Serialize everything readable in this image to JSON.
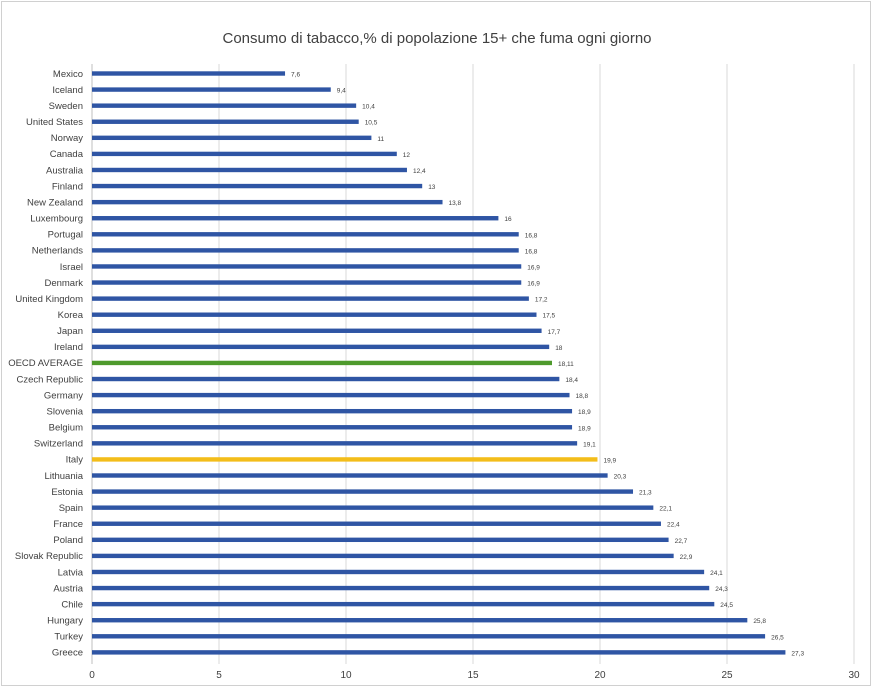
{
  "chart_data": {
    "type": "bar",
    "orientation": "horizontal",
    "title": "Consumo di tabacco,% di popolazione 15+ che fuma ogni giorno",
    "xlabel": "",
    "ylabel": "",
    "xlim": [
      0,
      30
    ],
    "xticks": [
      0,
      5,
      10,
      15,
      20,
      25,
      30
    ],
    "grid": "vertical",
    "legend": "none",
    "colors": {
      "default": "#2f55a4",
      "OECD AVERAGE": "#4e9a2c",
      "Italy": "#f3bd1a",
      "grid": "#d9d9d9",
      "axis": "#bfbfbf"
    },
    "categories": [
      "Mexico",
      "Iceland",
      "Sweden",
      "United States",
      "Norway",
      "Canada",
      "Australia",
      "Finland",
      "New Zealand",
      "Luxembourg",
      "Portugal",
      "Netherlands",
      "Israel",
      "Denmark",
      "United Kingdom",
      "Korea",
      "Japan",
      "Ireland",
      "OECD AVERAGE",
      "Czech Republic",
      "Germany",
      "Slovenia",
      "Belgium",
      "Switzerland",
      "Italy",
      "Lithuania",
      "Estonia",
      "Spain",
      "France",
      "Poland",
      "Slovak Republic",
      "Latvia",
      "Austria",
      "Chile",
      "Hungary",
      "Turkey",
      "Greece"
    ],
    "values": [
      7.6,
      9.4,
      10.4,
      10.5,
      11,
      12,
      12.4,
      13,
      13.8,
      16,
      16.8,
      16.8,
      16.9,
      16.9,
      17.2,
      17.5,
      17.7,
      18,
      18.11,
      18.4,
      18.8,
      18.9,
      18.9,
      19.1,
      19.9,
      20.3,
      21.3,
      22.1,
      22.4,
      22.7,
      22.9,
      24.1,
      24.3,
      24.5,
      25.8,
      26.5,
      27.3
    ],
    "value_labels": [
      "7,6",
      "9,4",
      "10,4",
      "10,5",
      "11",
      "12",
      "12,4",
      "13",
      "13,8",
      "16",
      "16,8",
      "16,8",
      "16,9",
      "16,9",
      "17,2",
      "17,5",
      "17,7",
      "18",
      "18,11",
      "18,4",
      "18,8",
      "18,9",
      "18,9",
      "19,1",
      "19,9",
      "20,3",
      "21,3",
      "22,1",
      "22,4",
      "22,7",
      "22,9",
      "24,1",
      "24,3",
      "24,5",
      "25,8",
      "26,5",
      "27,3"
    ]
  }
}
